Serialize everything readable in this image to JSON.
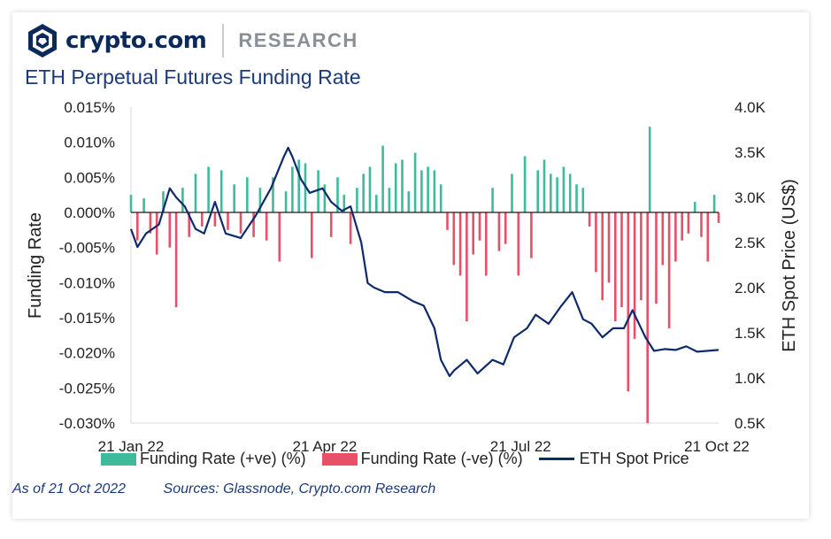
{
  "header": {
    "brand": "crypto.com",
    "section": "RESEARCH"
  },
  "chart_title": "ETH Perpetual  Futures Funding Rate",
  "footer": {
    "as_of": "As of 21 Oct 2022",
    "sources": "Sources: Glassnode, Crypto.com Research"
  },
  "colors": {
    "positive": "#3dbb9c",
    "negative": "#e8506a",
    "price_line": "#0d2b6b",
    "title": "#1a3a7a"
  },
  "chart_data": {
    "type": "bar",
    "title": "ETH Perpetual  Futures Funding Rate",
    "x_range": [
      "2022-01-21",
      "2022-10-21"
    ],
    "x_ticks": [
      "21 Jan 22",
      "21 Apr 22",
      "21 Jul 22",
      "21 Oct 22"
    ],
    "y_left": {
      "label": "Funding Rate",
      "min": -0.03,
      "max": 0.015,
      "ticks": [
        "0.015%",
        "0.010%",
        "0.005%",
        "0.000%",
        "-0.005%",
        "-0.010%",
        "-0.015%",
        "-0.020%",
        "-0.025%",
        "-0.030%"
      ]
    },
    "y_right": {
      "label": "ETH Spot Price (US$)",
      "min": 500,
      "max": 4000,
      "ticks": [
        "4.0K",
        "3.5K",
        "3.0K",
        "2.5K",
        "2.0K",
        "1.5K",
        "1.0K",
        "0.5K"
      ]
    },
    "legend": {
      "positive": "Funding Rate (+ve) (%)",
      "negative": "Funding Rate (-ve) (%)",
      "line": "ETH Spot Price"
    },
    "series": [
      {
        "name": "Funding Rate (%)",
        "points": [
          [
            "2022-01-21",
            0.0025
          ],
          [
            "2022-01-24",
            -0.004
          ],
          [
            "2022-01-27",
            0.002
          ],
          [
            "2022-01-30",
            -0.003
          ],
          [
            "2022-02-02",
            -0.006
          ],
          [
            "2022-02-05",
            0.003
          ],
          [
            "2022-02-08",
            -0.005
          ],
          [
            "2022-02-11",
            -0.0135
          ],
          [
            "2022-02-14",
            0.0035
          ],
          [
            "2022-02-17",
            -0.0035
          ],
          [
            "2022-02-20",
            0.0055
          ],
          [
            "2022-02-23",
            -0.002
          ],
          [
            "2022-02-26",
            0.0065
          ],
          [
            "2022-03-01",
            -0.002
          ],
          [
            "2022-03-04",
            0.006
          ],
          [
            "2022-03-07",
            -0.0025
          ],
          [
            "2022-03-10",
            0.004
          ],
          [
            "2022-03-13",
            -0.003
          ],
          [
            "2022-03-16",
            0.005
          ],
          [
            "2022-03-19",
            -0.0035
          ],
          [
            "2022-03-22",
            0.0035
          ],
          [
            "2022-03-25",
            -0.004
          ],
          [
            "2022-03-28",
            0.005
          ],
          [
            "2022-03-31",
            -0.007
          ],
          [
            "2022-04-03",
            0.003
          ],
          [
            "2022-04-06",
            0.0065
          ],
          [
            "2022-04-09",
            0.0075
          ],
          [
            "2022-04-12",
            0.007
          ],
          [
            "2022-04-15",
            -0.0065
          ],
          [
            "2022-04-18",
            0.006
          ],
          [
            "2022-04-21",
            0.004
          ],
          [
            "2022-04-24",
            -0.0035
          ],
          [
            "2022-04-27",
            0.005
          ],
          [
            "2022-04-30",
            0.0025
          ],
          [
            "2022-05-03",
            -0.0045
          ],
          [
            "2022-05-06",
            0.0035
          ],
          [
            "2022-05-09",
            0.0055
          ],
          [
            "2022-05-12",
            0.0065
          ],
          [
            "2022-05-15",
            0.0025
          ],
          [
            "2022-05-18",
            0.0095
          ],
          [
            "2022-05-21",
            0.0035
          ],
          [
            "2022-05-24",
            0.007
          ],
          [
            "2022-05-27",
            0.0075
          ],
          [
            "2022-05-30",
            0.003
          ],
          [
            "2022-06-02",
            0.0085
          ],
          [
            "2022-06-05",
            0.006
          ],
          [
            "2022-06-08",
            0.0065
          ],
          [
            "2022-06-11",
            0.006
          ],
          [
            "2022-06-14",
            0.004
          ],
          [
            "2022-06-17",
            -0.0025
          ],
          [
            "2022-06-20",
            -0.0075
          ],
          [
            "2022-06-23",
            -0.009
          ],
          [
            "2022-06-26",
            -0.0155
          ],
          [
            "2022-06-29",
            -0.006
          ],
          [
            "2022-07-02",
            -0.004
          ],
          [
            "2022-07-05",
            -0.009
          ],
          [
            "2022-07-08",
            0.0035
          ],
          [
            "2022-07-11",
            -0.0055
          ],
          [
            "2022-07-14",
            -0.0045
          ],
          [
            "2022-07-17",
            0.0055
          ],
          [
            "2022-07-20",
            -0.009
          ],
          [
            "2022-07-23",
            0.008
          ],
          [
            "2022-07-26",
            -0.0065
          ],
          [
            "2022-07-29",
            0.006
          ],
          [
            "2022-08-01",
            0.0075
          ],
          [
            "2022-08-04",
            0.0055
          ],
          [
            "2022-08-07",
            0.005
          ],
          [
            "2022-08-10",
            0.0065
          ],
          [
            "2022-08-13",
            0.0055
          ],
          [
            "2022-08-16",
            0.004
          ],
          [
            "2022-08-19",
            0.0035
          ],
          [
            "2022-08-22",
            -0.002
          ],
          [
            "2022-08-25",
            -0.0085
          ],
          [
            "2022-08-28",
            -0.0125
          ],
          [
            "2022-08-31",
            -0.01
          ],
          [
            "2022-09-03",
            -0.0155
          ],
          [
            "2022-09-06",
            -0.0135
          ],
          [
            "2022-09-09",
            -0.0255
          ],
          [
            "2022-09-12",
            -0.018
          ],
          [
            "2022-09-15",
            -0.0125
          ],
          [
            "2022-09-18",
            -0.03
          ],
          [
            "2022-09-19",
            0.0122
          ],
          [
            "2022-09-22",
            -0.013
          ],
          [
            "2022-09-25",
            -0.0075
          ],
          [
            "2022-09-28",
            -0.0165
          ],
          [
            "2022-10-01",
            -0.007
          ],
          [
            "2022-10-04",
            -0.004
          ],
          [
            "2022-10-07",
            -0.003
          ],
          [
            "2022-10-10",
            0.0015
          ],
          [
            "2022-10-13",
            -0.0035
          ],
          [
            "2022-10-16",
            -0.007
          ],
          [
            "2022-10-19",
            0.0025
          ],
          [
            "2022-10-21",
            -0.0015
          ]
        ]
      },
      {
        "name": "ETH Spot Price",
        "axis": "right",
        "points": [
          [
            "2022-01-21",
            2650
          ],
          [
            "2022-01-24",
            2450
          ],
          [
            "2022-01-28",
            2600
          ],
          [
            "2022-02-03",
            2700
          ],
          [
            "2022-02-08",
            3100
          ],
          [
            "2022-02-11",
            3000
          ],
          [
            "2022-02-15",
            2900
          ],
          [
            "2022-02-20",
            2650
          ],
          [
            "2022-02-24",
            2600
          ],
          [
            "2022-03-01",
            2950
          ],
          [
            "2022-03-06",
            2600
          ],
          [
            "2022-03-13",
            2550
          ],
          [
            "2022-03-20",
            2800
          ],
          [
            "2022-03-27",
            3100
          ],
          [
            "2022-04-02",
            3450
          ],
          [
            "2022-04-04",
            3550
          ],
          [
            "2022-04-06",
            3450
          ],
          [
            "2022-04-10",
            3200
          ],
          [
            "2022-04-14",
            3050
          ],
          [
            "2022-04-20",
            3100
          ],
          [
            "2022-04-24",
            2950
          ],
          [
            "2022-04-29",
            2850
          ],
          [
            "2022-05-03",
            2900
          ],
          [
            "2022-05-08",
            2500
          ],
          [
            "2022-05-11",
            2050
          ],
          [
            "2022-05-14",
            2000
          ],
          [
            "2022-05-19",
            1950
          ],
          [
            "2022-05-25",
            1950
          ],
          [
            "2022-06-01",
            1850
          ],
          [
            "2022-06-06",
            1800
          ],
          [
            "2022-06-11",
            1550
          ],
          [
            "2022-06-14",
            1200
          ],
          [
            "2022-06-18",
            1020
          ],
          [
            "2022-06-20",
            1080
          ],
          [
            "2022-06-26",
            1200
          ],
          [
            "2022-07-01",
            1050
          ],
          [
            "2022-07-08",
            1200
          ],
          [
            "2022-07-13",
            1150
          ],
          [
            "2022-07-18",
            1450
          ],
          [
            "2022-07-24",
            1550
          ],
          [
            "2022-07-28",
            1700
          ],
          [
            "2022-08-03",
            1600
          ],
          [
            "2022-08-09",
            1800
          ],
          [
            "2022-08-14",
            1950
          ],
          [
            "2022-08-19",
            1650
          ],
          [
            "2022-08-23",
            1600
          ],
          [
            "2022-08-28",
            1450
          ],
          [
            "2022-09-02",
            1550
          ],
          [
            "2022-09-07",
            1550
          ],
          [
            "2022-09-11",
            1750
          ],
          [
            "2022-09-14",
            1600
          ],
          [
            "2022-09-17",
            1450
          ],
          [
            "2022-09-21",
            1300
          ],
          [
            "2022-09-26",
            1320
          ],
          [
            "2022-10-01",
            1310
          ],
          [
            "2022-10-06",
            1350
          ],
          [
            "2022-10-11",
            1290
          ],
          [
            "2022-10-16",
            1300
          ],
          [
            "2022-10-21",
            1310
          ]
        ]
      }
    ]
  }
}
